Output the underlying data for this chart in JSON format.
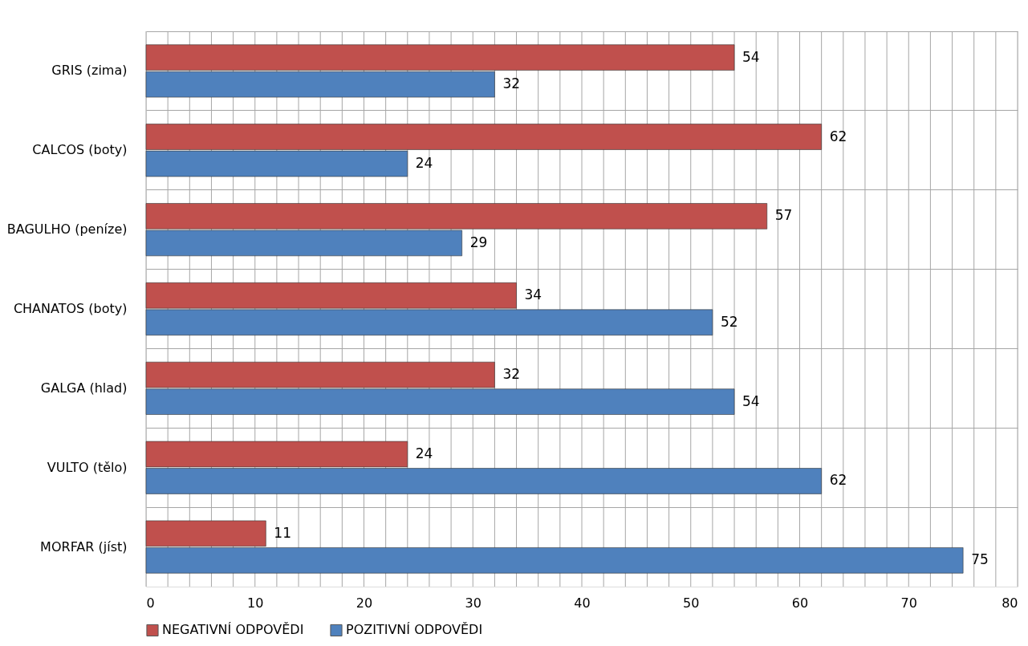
{
  "chart_data": {
    "type": "bar",
    "orientation": "horizontal",
    "categories": [
      "GRIS (zima)",
      "CALCOS (boty)",
      "BAGULHO (peníze)",
      "CHANATOS (boty)",
      "GALGA (hlad)",
      "VULTO (tělo)",
      "MORFAR (jíst)"
    ],
    "series": [
      {
        "name": "NEGATIVNÍ ODPOVĚDI",
        "color": "#c0504d",
        "values": [
          54,
          62,
          57,
          34,
          32,
          24,
          11
        ]
      },
      {
        "name": "POZITIVNÍ ODPOVĚDI",
        "color": "#4f81bd",
        "values": [
          32,
          24,
          29,
          52,
          54,
          62,
          75
        ]
      }
    ],
    "xlim": [
      0,
      80
    ],
    "xticks": [
      0,
      {
        "value": 2,
        "label": null
      },
      {
        "value": 4,
        "label": null
      },
      {
        "value": 6,
        "label": null
      },
      {
        "value": 8,
        "label": null
      },
      10,
      {
        "value": 12,
        "label": null
      },
      {
        "value": 14,
        "label": null
      },
      {
        "value": 16,
        "label": null
      },
      {
        "value": 18,
        "label": null
      },
      20,
      {
        "value": 22,
        "label": null
      },
      {
        "value": 24,
        "label": null
      },
      {
        "value": 26,
        "label": null
      },
      {
        "value": 28,
        "label": null
      },
      30,
      {
        "value": 32,
        "label": null
      },
      {
        "value": 34,
        "label": null
      },
      {
        "value": 36,
        "label": null
      },
      {
        "value": 38,
        "label": null
      },
      40,
      {
        "value": 42,
        "label": null
      },
      {
        "value": 44,
        "label": null
      },
      {
        "value": 46,
        "label": null
      },
      {
        "value": 48,
        "label": null
      },
      50,
      {
        "value": 52,
        "label": null
      },
      {
        "value": 54,
        "label": null
      },
      {
        "value": 56,
        "label": null
      },
      {
        "value": 58,
        "label": null
      },
      60,
      {
        "value": 62,
        "label": null
      },
      {
        "value": 64,
        "label": null
      },
      {
        "value": 66,
        "label": null
      },
      {
        "value": 68,
        "label": null
      },
      70,
      {
        "value": 72,
        "label": null
      },
      {
        "value": 74,
        "label": null
      },
      {
        "value": 76,
        "label": null
      },
      {
        "value": 78,
        "label": null
      },
      80
    ],
    "data_labels": true,
    "grid": true,
    "legend": "bottom"
  }
}
